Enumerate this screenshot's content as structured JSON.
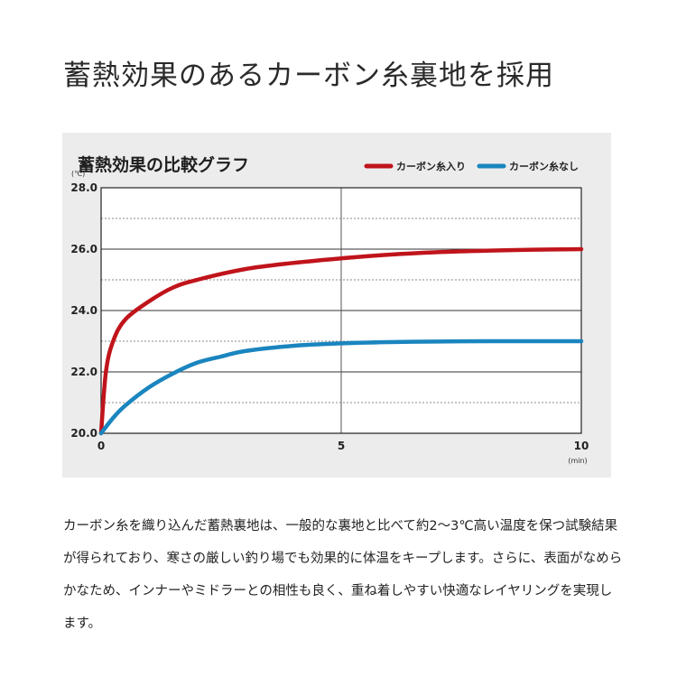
{
  "heading": "蓄熱効果のあるカーボン糸裏地を採用",
  "chart_data": {
    "type": "line",
    "title": "蓄熱効果の比較グラフ",
    "ylabel_unit": "(℃)",
    "xlabel_unit": "(min)",
    "xlim": [
      0,
      10
    ],
    "ylim": [
      20,
      28
    ],
    "x_ticks": [
      "0",
      "5",
      "10"
    ],
    "y_ticks": [
      "20.0",
      "22.0",
      "24.0",
      "26.0",
      "28.0"
    ],
    "grid": true,
    "legend_position": "top-right",
    "series": [
      {
        "name": "カーボン糸入り",
        "color": "#c0141b",
        "x": [
          0,
          0.1,
          0.25,
          0.5,
          1,
          1.5,
          2,
          3,
          4,
          5,
          6,
          7,
          8,
          9,
          10
        ],
        "y": [
          20.0,
          22.0,
          23.0,
          23.7,
          24.3,
          24.75,
          25.0,
          25.35,
          25.55,
          25.7,
          25.82,
          25.9,
          25.95,
          25.98,
          26.0
        ]
      },
      {
        "name": "カーボン糸なし",
        "color": "#1a85bf",
        "x": [
          0,
          0.25,
          0.5,
          1,
          1.5,
          2,
          2.5,
          3,
          4,
          5,
          6,
          7,
          8,
          9,
          10
        ],
        "y": [
          20.0,
          20.5,
          20.9,
          21.5,
          21.95,
          22.3,
          22.5,
          22.68,
          22.85,
          22.93,
          22.97,
          22.99,
          23.0,
          23.0,
          23.0
        ]
      }
    ]
  },
  "description": "カーボン糸を織り込んだ蓄熱裏地は、一般的な裏地と比べて約2〜3℃高い温度を保つ試験結果が得られており、寒さの厳しい釣り場でも効果的に体温をキープします。さらに、表面がなめらかなため、インナーやミドラーとの相性も良く、重ね着しやすい快適なレイヤリングを実現します。"
}
